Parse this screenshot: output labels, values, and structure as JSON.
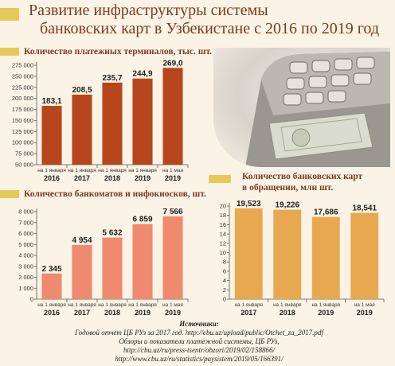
{
  "title": {
    "line1": "Развитие инфраструктуры системы",
    "line2": "банковских карт в Узбекистане с 2016 по 2019 год"
  },
  "colors": {
    "terminals_bar": "#b8461c",
    "atm_bar": "#ef8a6e",
    "cards_bar": "#e8a850",
    "accent": "#e8c85a",
    "title": "#7a3b1e"
  },
  "chart_data": [
    {
      "type": "bar",
      "title": "Количество платежных терминалов, тыс. шт.",
      "categories": [
        "2016",
        "2017",
        "2018",
        "2019",
        "2019"
      ],
      "category_notes": [
        "на 1 января",
        "на 1 января",
        "на 1 января",
        "на 1 января",
        "на 1 мая"
      ],
      "values": [
        183100,
        208500,
        235700,
        244900,
        269000
      ],
      "data_labels": [
        "183,1",
        "208,5",
        "235,7",
        "244,9",
        "269,0"
      ],
      "yticks": [
        "50 000",
        "75 000",
        "100 000",
        "125 000",
        "150 000",
        "175 000",
        "200 000",
        "225 000",
        "250 000",
        "275 000"
      ],
      "ylim": [
        50000,
        275000
      ],
      "grid": false
    },
    {
      "type": "bar",
      "title": "Количество банкоматов и инфокиосков, шт.",
      "categories": [
        "2016",
        "2017",
        "2018",
        "2019",
        "2019"
      ],
      "category_notes": [
        "на 1 января",
        "на 1 января",
        "на 1 января",
        "на 1 января",
        "на 1 мая"
      ],
      "values": [
        2345,
        4954,
        5632,
        6859,
        7566
      ],
      "data_labels": [
        "2 345",
        "4 954",
        "5 632",
        "6 859",
        "7 566"
      ],
      "yticks": [
        "0",
        "1 000",
        "2 000",
        "3 000",
        "4 000",
        "5 000",
        "6 000",
        "7 000",
        "8 000"
      ],
      "ylim": [
        0,
        8000
      ],
      "grid": false
    },
    {
      "type": "bar",
      "title": "Количество банковских карт в обращении, млн шт.",
      "categories": [
        "2017",
        "2018",
        "2019",
        "2019"
      ],
      "category_notes": [
        "на 1 января",
        "на 1 января",
        "на 1 января",
        "на 1 мая"
      ],
      "values": [
        19.523,
        19.226,
        17.686,
        18.541
      ],
      "data_labels": [
        "19,523",
        "19,226",
        "17,686",
        "18,541"
      ],
      "yticks": [
        "0",
        "2",
        "4",
        "6",
        "8",
        "10",
        "12",
        "14",
        "16",
        "18",
        "20"
      ],
      "ylim": [
        0,
        20
      ],
      "grid": false
    }
  ],
  "sources": {
    "heading": "Источники:",
    "lines": [
      "Годовой отчет ЦБ РУз за 2017 год.  http://cbu.uz/upload/public/Otchet_za_2017.pdf",
      "Обзоры и показатели платежной системы, ЦБ РУз,",
      "http://cbu.uz/ru/press-tsentr/obzori/2019/02/158866/",
      "http://www.cbu.uz/ru/statistics/paysistem/2019/05/166391/"
    ]
  }
}
